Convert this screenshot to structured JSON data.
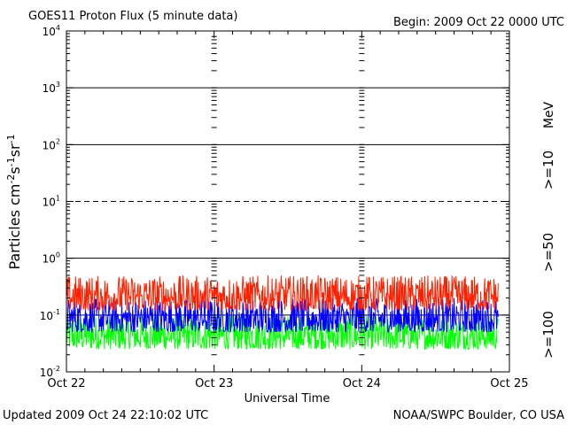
{
  "header": {
    "title": "GOES11 Proton Flux (5 minute data)",
    "begin": "Begin: 2009 Oct 22 0000 UTC"
  },
  "footer": {
    "updated": "Updated 2009 Oct 24 22:10:02 UTC",
    "credit": "NOAA/SWPC Boulder, CO USA"
  },
  "colors": {
    "ge10": "#ff2000",
    "ge50": "#0000ff",
    "ge100": "#00ff00",
    "axis": "#000000"
  },
  "chart_data": {
    "type": "line",
    "title": "GOES11 Proton Flux (5 minute data)",
    "xlabel": "Universal Time",
    "ylabel_parts": {
      "base": "Particles cm",
      "e1": "-2",
      "m1": "s",
      "e2": "-1",
      "m2": "sr",
      "e3": "-1"
    },
    "yscale": "log",
    "ylim": [
      0.01,
      10000
    ],
    "y_ticks": [
      {
        "base": "10",
        "exp": "-2"
      },
      {
        "base": "10",
        "exp": "-1"
      },
      {
        "base": "10",
        "exp": "0"
      },
      {
        "base": "10",
        "exp": "1"
      },
      {
        "base": "10",
        "exp": "2"
      },
      {
        "base": "10",
        "exp": "3"
      },
      {
        "base": "10",
        "exp": "4"
      }
    ],
    "x_ticks": [
      "Oct 22",
      "Oct 23",
      "Oct 24",
      "Oct 25"
    ],
    "x_range": [
      "2009-10-22 00:00",
      "2009-10-25 00:00"
    ],
    "data_end": "2009-10-24 22:10",
    "threshold_lines": [
      {
        "value": 10,
        "style": "dashed"
      },
      {
        "value": 1,
        "style": "solid"
      },
      {
        "value": 100,
        "style": "solid"
      },
      {
        "value": 1000,
        "style": "solid"
      },
      {
        "value": 0.1,
        "style": "solid"
      }
    ],
    "series": [
      {
        "name": ">=10",
        "color": "#ff2000",
        "typical_range": [
          0.12,
          0.5
        ]
      },
      {
        "name": ">=50",
        "color": "#0000ff",
        "typical_range": [
          0.05,
          0.2
        ]
      },
      {
        "name": ">=100",
        "color": "#00ff00",
        "typical_range": [
          0.025,
          0.1
        ]
      }
    ],
    "legend": {
      "unit": "MeV",
      "position": "right"
    }
  }
}
